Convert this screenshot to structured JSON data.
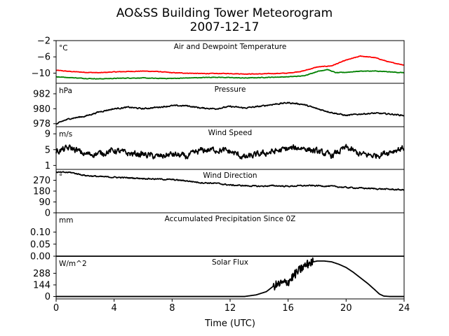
{
  "figure": {
    "title_line1": "AO&SS Building Tower Meteorogram",
    "title_line2": "2007-12-17"
  },
  "chart_data": {
    "type": "line",
    "x_axis": {
      "label": "Time (UTC)",
      "range": [
        0,
        24
      ],
      "ticks": [
        0,
        4,
        8,
        12,
        16,
        20,
        24
      ],
      "tick_labels": [
        "0",
        "4",
        "8",
        "12",
        "16",
        "20",
        "24"
      ]
    },
    "panels": [
      {
        "title": "Air and Dewpoint Temperature",
        "unit_label": "°C",
        "ylim": [
          -12.5,
          -2
        ],
        "yticks": [
          -2,
          -6,
          -10
        ],
        "ytick_labels": [
          "−2",
          "−6",
          "−10"
        ],
        "series": [
          {
            "color": "#ff0000",
            "x": [
              0,
              1,
              2,
              3,
              4,
              5,
              6,
              7,
              8,
              9,
              10,
              11,
              12,
              13,
              14,
              15,
              16,
              17,
              17.5,
              18,
              19,
              20,
              21,
              22,
              23,
              24
            ],
            "y": [
              -9.3,
              -9.6,
              -9.8,
              -9.9,
              -9.7,
              -9.6,
              -9.5,
              -9.6,
              -9.9,
              -10.0,
              -10.1,
              -10.1,
              -10.1,
              -10.2,
              -10.2,
              -10.1,
              -10.0,
              -9.5,
              -9.0,
              -8.5,
              -8.2,
              -6.8,
              -5.8,
              -6.2,
              -7.3,
              -8.0
            ],
            "noise": 0.12
          },
          {
            "color": "#008000",
            "x": [
              0,
              1,
              2,
              3,
              4,
              5,
              6,
              7,
              8,
              9,
              10,
              11,
              12,
              13,
              14,
              15,
              16,
              17,
              17.5,
              18,
              18.7,
              19.3,
              20,
              21,
              22,
              23,
              24
            ],
            "y": [
              -10.9,
              -11.1,
              -11.3,
              -11.4,
              -11.3,
              -11.2,
              -11.2,
              -11.3,
              -11.3,
              -11.2,
              -11.1,
              -11.0,
              -11.1,
              -11.2,
              -11.1,
              -11.0,
              -10.9,
              -10.7,
              -10.2,
              -9.6,
              -9.1,
              -9.9,
              -9.8,
              -9.5,
              -9.5,
              -9.7,
              -9.9
            ],
            "noise": 0.12
          }
        ]
      },
      {
        "title": "Pressure",
        "unit_label": "hPa",
        "ylim": [
          977.6,
          983.4
        ],
        "yticks": [
          982,
          980,
          978
        ],
        "ytick_labels": [
          "982",
          "980",
          "978"
        ],
        "series": [
          {
            "color": "#000000",
            "x": [
              0,
              0.5,
              1,
              2,
              3,
              4,
              5,
              6,
              7,
              8,
              9,
              10,
              11,
              12,
              13,
              14,
              15,
              16,
              17,
              18,
              19,
              20,
              21,
              22,
              23,
              24
            ],
            "y": [
              977.9,
              978.4,
              978.7,
              979.0,
              979.6,
              980.0,
              980.2,
              980.0,
              980.2,
              980.4,
              980.4,
              980.1,
              980.0,
              980.3,
              980.1,
              980.3,
              980.6,
              980.8,
              980.6,
              980.0,
              979.5,
              979.1,
              979.3,
              979.4,
              979.3,
              979.1
            ],
            "noise": 0.15
          }
        ]
      },
      {
        "title": "Wind Speed",
        "unit_label": "m/s",
        "ylim": [
          0,
          10.8
        ],
        "yticks": [
          9,
          5,
          1
        ],
        "ytick_labels": [
          "9",
          "5",
          "1"
        ],
        "series": [
          {
            "color": "#000000",
            "x": [
              0,
              1,
              2,
              3,
              4,
              5,
              6,
              7,
              8,
              9,
              10,
              11,
              12,
              13,
              14,
              15,
              16,
              17,
              18,
              19,
              20,
              21,
              22,
              23,
              24
            ],
            "y": [
              4.5,
              5.5,
              3.8,
              4.0,
              4.8,
              4.0,
              3.8,
              3.2,
              3.8,
              3.2,
              4.8,
              5.0,
              4.5,
              3.0,
              3.8,
              4.5,
              5.2,
              5.5,
              4.5,
              3.5,
              5.5,
              3.8,
              3.5,
              4.5,
              5.5
            ],
            "noise": 1.4
          }
        ]
      },
      {
        "title": "Wind Direction",
        "unit_label": "°",
        "ylim": [
          0,
          360
        ],
        "yticks": [
          270,
          180,
          90,
          0
        ],
        "ytick_labels": [
          "270",
          "180",
          "90",
          "0"
        ],
        "series": [
          {
            "color": "#000000",
            "x": [
              0,
              1,
              2,
              3,
              4,
              5,
              6,
              7,
              8,
              9,
              10,
              11,
              12,
              13,
              14,
              15,
              16,
              17,
              18,
              19,
              20,
              21,
              22,
              23,
              24
            ],
            "y": [
              335,
              335,
              310,
              300,
              295,
              290,
              285,
              280,
              275,
              265,
              250,
              245,
              230,
              225,
              220,
              225,
              220,
              225,
              225,
              220,
              210,
              205,
              200,
              195,
              190
            ],
            "noise": 9
          }
        ]
      },
      {
        "title": "Accumulated Precipitation Since 0Z",
        "unit_label": "mm",
        "ylim": [
          0,
          0.18
        ],
        "yticks": [
          0.1,
          0.05,
          0.0
        ],
        "ytick_labels": [
          "0.10",
          "0.05",
          "0.00"
        ],
        "series": [
          {
            "color": "#000000",
            "x": [
              0,
              24
            ],
            "y": [
              0,
              0
            ],
            "noise": 0
          }
        ]
      },
      {
        "title": "Solar Flux",
        "unit_label": "W/m^2",
        "ylim": [
          -30,
          500
        ],
        "yticks": [
          288,
          144,
          0
        ],
        "ytick_labels": [
          "288",
          "144",
          "0"
        ],
        "series": [
          {
            "color": "#000000",
            "x": [
              0,
              13.0,
              13.8,
              14.5,
              15.0,
              15.5,
              16.0,
              16.5,
              17.0,
              17.5,
              18.0,
              18.5,
              19.0,
              19.5,
              20.0,
              20.5,
              21.0,
              21.5,
              22.0,
              22.3,
              22.6,
              23.0,
              24
            ],
            "y": [
              0,
              0,
              20,
              60,
              130,
              160,
              180,
              280,
              360,
              420,
              440,
              440,
              430,
              400,
              360,
              300,
              230,
              160,
              80,
              30,
              5,
              0,
              0
            ],
            "noise": 0,
            "noisy_from": 15.0,
            "noisy_to": 17.7,
            "noisy_amp": 55
          }
        ]
      }
    ]
  }
}
